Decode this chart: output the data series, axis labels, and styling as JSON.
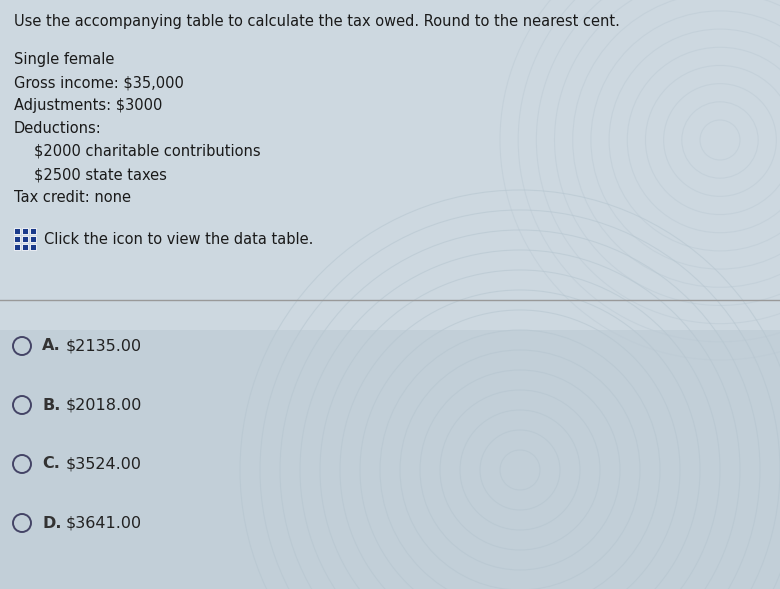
{
  "title_line": "Use the accompanying table to calculate the tax owed. Round to the nearest cent.",
  "problem_lines": [
    "Single female",
    " Gross income: $35,000",
    " Adjustments: $3000",
    " Deductions:",
    "    $2000 charitable contributions",
    "    $2500 state taxes",
    " Tax credit: none"
  ],
  "icon_text": "Click the icon to view the data table.",
  "choices": [
    "$2135.00",
    "$2018.00",
    "$3524.00",
    "$3641.00"
  ],
  "choice_letters": [
    "A.",
    "B.",
    "C.",
    "D."
  ],
  "bg_color": "#cdd8e0",
  "bg_bottom_color": "#c2cfd8",
  "title_color": "#1a1a1a",
  "text_color": "#1a1a1a",
  "choice_letter_color": "#333333",
  "choice_value_color": "#222222",
  "divider_color": "#999999",
  "icon_color": "#1a3a8a",
  "circle_color": "#444466",
  "figwidth": 7.8,
  "figheight": 5.89,
  "dpi": 100
}
